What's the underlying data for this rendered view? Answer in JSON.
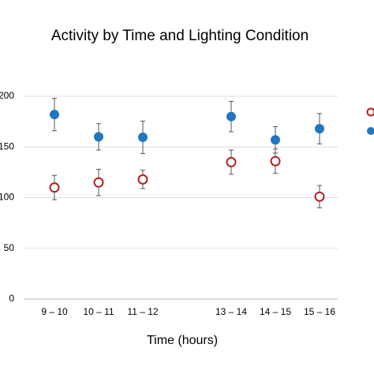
{
  "chart_data": {
    "type": "scatter",
    "title": "Activity by Time and Lighting Condition",
    "x_label": "Time (hours)",
    "categories": [
      "9 – 10",
      "10 – 11",
      "11 – 12",
      null,
      "13 – 14",
      "14 – 15",
      "15 – 16"
    ],
    "series": [
      {
        "color": "#b22222",
        "marker": "hollow-circle",
        "values": [
          110,
          115,
          118,
          null,
          135,
          136,
          101
        ],
        "errors": [
          12,
          13,
          9,
          null,
          12,
          12,
          11
        ]
      },
      {
        "color": "#1f77c4",
        "marker": "filled-circle",
        "values": [
          182,
          160,
          159.5,
          null,
          180,
          157,
          168
        ],
        "errors": [
          16,
          13,
          16,
          null,
          15,
          13,
          15
        ]
      }
    ],
    "ylim": [
      0,
      200
    ],
    "yticks": [
      0,
      50,
      100,
      150,
      200
    ],
    "grid": true
  }
}
